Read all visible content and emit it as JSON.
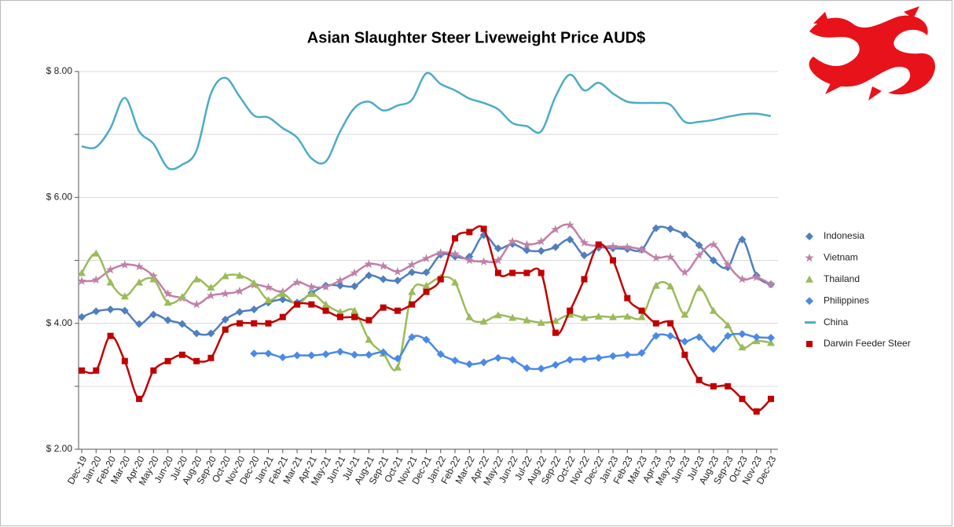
{
  "chart_data": {
    "type": "line",
    "title": "Asian Slaughter Steer Liveweight Price AUD$",
    "categories": [
      "Dec-19",
      "Jan-20",
      "Feb-20",
      "Mar-20",
      "Apr-20",
      "May-20",
      "Jun-20",
      "Jul-20",
      "Aug-20",
      "Sep-20",
      "Oct-20",
      "Nov-20",
      "Dec-20",
      "Jan-21",
      "Feb-21",
      "Mar-21",
      "Apr-21",
      "May-21",
      "Jun-21",
      "Jul-21",
      "Aug-21",
      "Sep-21",
      "Oct-21",
      "Nov-21",
      "Dec-21",
      "Jan-22",
      "Feb-22",
      "Mar-22",
      "Apr-22",
      "May-22",
      "Jun-22",
      "Jul-22",
      "Aug-22",
      "Sep-22",
      "Oct-22",
      "Nov-22",
      "Dec-22",
      "Jan-23",
      "Feb-23",
      "Mar-23",
      "Apr-23",
      "May-23",
      "Jun-23",
      "Jul-23",
      "Aug-23",
      "Sep-23",
      "Oct-23",
      "Nov-23",
      "Dec-23"
    ],
    "ylim": [
      2,
      8
    ],
    "yticks": [
      {
        "value": 2,
        "label": "$ 2.00"
      },
      {
        "value": 4,
        "label": "$ 4.00"
      },
      {
        "value": 6,
        "label": "$ 6.00"
      },
      {
        "value": 8,
        "label": "$ 8.00"
      }
    ],
    "minor_yticks": [
      3,
      5,
      7
    ],
    "grid": true,
    "legend": "right",
    "series": [
      {
        "name": "Indonesia",
        "color": "#4f7fbd",
        "marker": "diamond",
        "values": [
          4.1,
          4.19,
          4.22,
          4.2,
          3.99,
          4.14,
          4.05,
          3.99,
          3.84,
          3.84,
          4.06,
          4.18,
          4.22,
          4.33,
          4.38,
          4.33,
          4.48,
          4.6,
          4.6,
          4.59,
          4.76,
          4.7,
          4.68,
          4.81,
          4.81,
          5.09,
          5.06,
          5.06,
          5.4,
          5.19,
          5.26,
          5.16,
          5.15,
          5.21,
          5.33,
          5.08,
          5.2,
          5.19,
          5.18,
          5.17,
          5.51,
          5.5,
          5.41,
          5.24,
          5.0,
          4.89,
          5.33,
          4.76,
          4.62
        ]
      },
      {
        "name": "Vietnam",
        "color": "#c080a8",
        "marker": "star",
        "values": [
          4.67,
          4.69,
          4.85,
          4.93,
          4.9,
          4.75,
          4.47,
          4.4,
          4.3,
          4.44,
          4.47,
          4.51,
          4.61,
          4.57,
          4.5,
          4.65,
          4.58,
          4.58,
          4.68,
          4.8,
          4.94,
          4.91,
          4.82,
          4.93,
          5.03,
          5.12,
          5.1,
          5.0,
          4.98,
          5.0,
          5.3,
          5.25,
          5.3,
          5.49,
          5.56,
          5.28,
          5.23,
          5.22,
          5.21,
          5.17,
          5.04,
          5.05,
          4.81,
          5.08,
          5.25,
          4.93,
          4.7,
          4.73,
          4.62
        ]
      },
      {
        "name": "Thailand",
        "color": "#9bbb59",
        "marker": "triangle",
        "values": [
          4.8,
          5.11,
          4.65,
          4.43,
          4.65,
          4.7,
          4.33,
          4.42,
          4.7,
          4.57,
          4.75,
          4.76,
          4.64,
          4.37,
          4.47,
          4.3,
          4.47,
          4.3,
          4.18,
          4.2,
          3.74,
          3.52,
          3.3,
          4.5,
          4.6,
          4.73,
          4.65,
          4.1,
          4.03,
          4.13,
          4.09,
          4.05,
          4.01,
          4.04,
          4.14,
          4.09,
          4.11,
          4.1,
          4.11,
          4.1,
          4.6,
          4.59,
          4.14,
          4.56,
          4.2,
          3.97,
          3.62,
          3.72,
          3.69
        ]
      },
      {
        "name": "Philippines",
        "color": "#4a8ae6",
        "marker": "diamond",
        "values": [
          null,
          null,
          null,
          null,
          null,
          null,
          null,
          null,
          null,
          null,
          null,
          null,
          3.52,
          3.52,
          3.46,
          3.49,
          3.49,
          3.51,
          3.55,
          3.5,
          3.5,
          3.54,
          3.44,
          3.78,
          3.74,
          3.51,
          3.41,
          3.35,
          3.38,
          3.45,
          3.42,
          3.29,
          3.28,
          3.34,
          3.42,
          3.43,
          3.45,
          3.48,
          3.5,
          3.53,
          3.8,
          3.8,
          3.71,
          3.78,
          3.59,
          3.8,
          3.83,
          3.78,
          3.77
        ]
      },
      {
        "name": "China",
        "color": "#4bacc6",
        "marker": "none",
        "values": [
          6.81,
          6.8,
          7.1,
          7.58,
          7.05,
          6.85,
          6.47,
          6.52,
          6.75,
          7.65,
          7.9,
          7.6,
          7.3,
          7.27,
          7.1,
          6.95,
          6.62,
          6.57,
          7.05,
          7.42,
          7.52,
          7.38,
          7.46,
          7.55,
          7.97,
          7.8,
          7.7,
          7.57,
          7.5,
          7.4,
          7.18,
          7.13,
          7.05,
          7.6,
          7.95,
          7.7,
          7.82,
          7.65,
          7.52,
          7.5,
          7.5,
          7.47,
          7.2,
          7.2,
          7.23,
          7.28,
          7.32,
          7.33,
          7.29
        ]
      },
      {
        "name": "Darwin Feeder Steer",
        "color": "#c00000",
        "marker": "square",
        "values": [
          3.25,
          3.25,
          3.8,
          3.4,
          2.8,
          3.25,
          3.4,
          3.5,
          3.4,
          3.45,
          3.9,
          4.0,
          4.0,
          4.0,
          4.1,
          4.3,
          4.3,
          4.2,
          4.1,
          4.1,
          4.05,
          4.25,
          4.2,
          4.3,
          4.5,
          4.7,
          5.35,
          5.45,
          5.5,
          4.8,
          4.8,
          4.8,
          4.8,
          3.85,
          4.2,
          4.7,
          5.25,
          5.0,
          4.4,
          4.2,
          4.0,
          4.0,
          3.5,
          3.1,
          3.0,
          3.0,
          2.8,
          2.6,
          2.8
        ]
      }
    ]
  }
}
